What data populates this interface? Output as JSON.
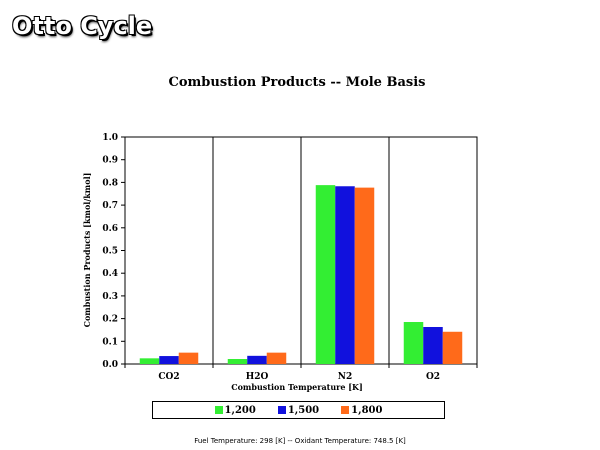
{
  "slide": {
    "title": "Otto Cycle"
  },
  "footnote": "Fuel Temperature:  298 [K]  --  Oxidant Temperature:  748.5 [K]",
  "colors": {
    "1,200": "#33ee33",
    "1,500": "#1111dd",
    "1,800": "#ff6a1a"
  },
  "chart_data": {
    "type": "bar",
    "title": "Combustion Products -- Mole Basis",
    "xlabel": "Combustion Temperature [K]",
    "ylabel": "Combustion Products [kmol/kmol]",
    "ylim": [
      0,
      1.0
    ],
    "yticks": [
      "0.0",
      "0.1",
      "0.2",
      "0.3",
      "0.4",
      "0.5",
      "0.6",
      "0.7",
      "0.8",
      "0.9",
      "1.0"
    ],
    "grid": false,
    "legend_position": "bottom",
    "categories": [
      "CO2",
      "H2O",
      "N2",
      "O2"
    ],
    "series": [
      {
        "name": "1,200",
        "values": [
          0.025,
          0.022,
          0.788,
          0.185
        ]
      },
      {
        "name": "1,500",
        "values": [
          0.035,
          0.036,
          0.783,
          0.163
        ]
      },
      {
        "name": "1,800",
        "values": [
          0.05,
          0.05,
          0.777,
          0.142
        ]
      }
    ]
  }
}
